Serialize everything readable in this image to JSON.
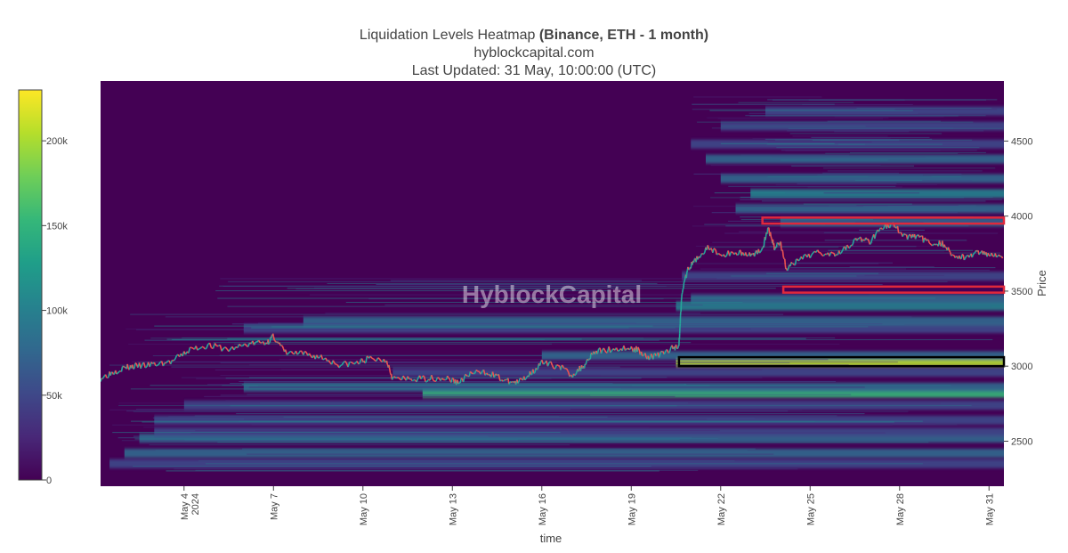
{
  "header": {
    "title_main": "Liquidation Levels Heatmap ",
    "title_bold": "(Binance, ETH - 1 month)",
    "subtitle": "hyblockcapital.com",
    "updated": "Last Updated: 31 May, 10:00:00 (UTC)"
  },
  "watermark": "HyblockCapital",
  "colors": {
    "background": "#440154",
    "price_up": "#26a69a",
    "price_down": "#ef5350",
    "highlight_red": "#e0283c",
    "highlight_black": "#000000",
    "colorscale": [
      "#440154",
      "#482878",
      "#3e4989",
      "#31688e",
      "#26828e",
      "#1f9e89",
      "#35b779",
      "#6ece58",
      "#b5de2b",
      "#fde725"
    ]
  },
  "chart_data": {
    "type": "heatmap",
    "xlabel": "time",
    "ylabel": "Price",
    "y_axis_side": "right",
    "ylim": [
      2200,
      4900
    ],
    "x_start_day": 1.2,
    "x_end_day": 31.5,
    "x_ticks": [
      {
        "day": 4,
        "label": "May 4",
        "sublabel": "2024"
      },
      {
        "day": 7,
        "label": "May 7",
        "sublabel": ""
      },
      {
        "day": 10,
        "label": "May 10",
        "sublabel": ""
      },
      {
        "day": 13,
        "label": "May 13",
        "sublabel": ""
      },
      {
        "day": 16,
        "label": "May 16",
        "sublabel": ""
      },
      {
        "day": 19,
        "label": "May 19",
        "sublabel": ""
      },
      {
        "day": 22,
        "label": "May 22",
        "sublabel": ""
      },
      {
        "day": 25,
        "label": "May 25",
        "sublabel": ""
      },
      {
        "day": 28,
        "label": "May 28",
        "sublabel": ""
      },
      {
        "day": 31,
        "label": "May 31",
        "sublabel": ""
      }
    ],
    "y_ticks": [
      2500,
      3000,
      3500,
      4000,
      4500
    ],
    "colorbar": {
      "min": 0,
      "max": 230000,
      "ticks": [
        {
          "value": 0,
          "label": "0"
        },
        {
          "value": 50000,
          "label": "50k"
        },
        {
          "value": 100000,
          "label": "100k"
        },
        {
          "value": 150000,
          "label": "150k"
        },
        {
          "value": 200000,
          "label": "200k"
        }
      ]
    },
    "price_series": [
      {
        "day": 1.2,
        "price": 2920
      },
      {
        "day": 1.6,
        "price": 2960
      },
      {
        "day": 2.0,
        "price": 2990
      },
      {
        "day": 2.4,
        "price": 3000
      },
      {
        "day": 3.0,
        "price": 3010
      },
      {
        "day": 3.6,
        "price": 3030
      },
      {
        "day": 4.2,
        "price": 3110
      },
      {
        "day": 4.8,
        "price": 3140
      },
      {
        "day": 5.5,
        "price": 3110
      },
      {
        "day": 6.2,
        "price": 3150
      },
      {
        "day": 6.8,
        "price": 3160
      },
      {
        "day": 7.0,
        "price": 3200
      },
      {
        "day": 7.4,
        "price": 3090
      },
      {
        "day": 8.0,
        "price": 3080
      },
      {
        "day": 8.6,
        "price": 3060
      },
      {
        "day": 9.2,
        "price": 3010
      },
      {
        "day": 9.8,
        "price": 3020
      },
      {
        "day": 10.2,
        "price": 3050
      },
      {
        "day": 10.8,
        "price": 3040
      },
      {
        "day": 11.0,
        "price": 2920
      },
      {
        "day": 11.6,
        "price": 2910
      },
      {
        "day": 12.2,
        "price": 2920
      },
      {
        "day": 12.8,
        "price": 2920
      },
      {
        "day": 13.2,
        "price": 2890
      },
      {
        "day": 13.6,
        "price": 2950
      },
      {
        "day": 14.2,
        "price": 2960
      },
      {
        "day": 14.8,
        "price": 2900
      },
      {
        "day": 15.2,
        "price": 2890
      },
      {
        "day": 15.6,
        "price": 2950
      },
      {
        "day": 16.0,
        "price": 3020
      },
      {
        "day": 16.6,
        "price": 3000
      },
      {
        "day": 17.0,
        "price": 2940
      },
      {
        "day": 17.4,
        "price": 3000
      },
      {
        "day": 17.7,
        "price": 3090
      },
      {
        "day": 18.2,
        "price": 3110
      },
      {
        "day": 18.8,
        "price": 3120
      },
      {
        "day": 19.2,
        "price": 3110
      },
      {
        "day": 19.6,
        "price": 3060
      },
      {
        "day": 20.0,
        "price": 3080
      },
      {
        "day": 20.4,
        "price": 3120
      },
      {
        "day": 20.6,
        "price": 3140
      },
      {
        "day": 20.7,
        "price": 3500
      },
      {
        "day": 20.9,
        "price": 3640
      },
      {
        "day": 21.2,
        "price": 3720
      },
      {
        "day": 21.6,
        "price": 3790
      },
      {
        "day": 22.0,
        "price": 3740
      },
      {
        "day": 22.6,
        "price": 3760
      },
      {
        "day": 23.0,
        "price": 3740
      },
      {
        "day": 23.4,
        "price": 3780
      },
      {
        "day": 23.6,
        "price": 3920
      },
      {
        "day": 23.8,
        "price": 3790
      },
      {
        "day": 24.0,
        "price": 3830
      },
      {
        "day": 24.2,
        "price": 3650
      },
      {
        "day": 24.6,
        "price": 3700
      },
      {
        "day": 25.2,
        "price": 3760
      },
      {
        "day": 25.8,
        "price": 3750
      },
      {
        "day": 26.2,
        "price": 3790
      },
      {
        "day": 26.6,
        "price": 3850
      },
      {
        "day": 27.0,
        "price": 3830
      },
      {
        "day": 27.4,
        "price": 3930
      },
      {
        "day": 27.8,
        "price": 3940
      },
      {
        "day": 28.2,
        "price": 3860
      },
      {
        "day": 28.6,
        "price": 3870
      },
      {
        "day": 29.0,
        "price": 3820
      },
      {
        "day": 29.4,
        "price": 3820
      },
      {
        "day": 29.8,
        "price": 3740
      },
      {
        "day": 30.2,
        "price": 3720
      },
      {
        "day": 30.6,
        "price": 3760
      },
      {
        "day": 31.0,
        "price": 3750
      },
      {
        "day": 31.5,
        "price": 3740
      }
    ],
    "liquidation_bands": [
      {
        "price": 2350,
        "start_day": 1.5,
        "value": 60000
      },
      {
        "price": 2420,
        "start_day": 2.0,
        "value": 70000
      },
      {
        "price": 2520,
        "start_day": 2.5,
        "value": 75000
      },
      {
        "price": 2560,
        "start_day": 3.0,
        "value": 60000
      },
      {
        "price": 2640,
        "start_day": 3.0,
        "value": 55000
      },
      {
        "price": 2740,
        "start_day": 4.0,
        "value": 60000
      },
      {
        "price": 2820,
        "start_day": 12.0,
        "value": 145000
      },
      {
        "price": 2860,
        "start_day": 6.0,
        "value": 70000
      },
      {
        "price": 2960,
        "start_day": 11.0,
        "value": 60000
      },
      {
        "price": 3030,
        "start_day": 20.5,
        "value": 210000
      },
      {
        "price": 3070,
        "start_day": 16.0,
        "value": 80000
      },
      {
        "price": 3250,
        "start_day": 6.0,
        "value": 60000
      },
      {
        "price": 3300,
        "start_day": 8.0,
        "value": 65000
      },
      {
        "price": 3400,
        "start_day": 20.5,
        "value": 90000
      },
      {
        "price": 3450,
        "start_day": 21.0,
        "value": 70000
      },
      {
        "price": 3600,
        "start_day": 20.7,
        "value": 55000
      },
      {
        "price": 3960,
        "start_day": 24.0,
        "value": 85000
      },
      {
        "price": 4050,
        "start_day": 22.5,
        "value": 70000
      },
      {
        "price": 4150,
        "start_day": 23.0,
        "value": 95000
      },
      {
        "price": 4250,
        "start_day": 22.0,
        "value": 65000
      },
      {
        "price": 4380,
        "start_day": 21.5,
        "value": 85000
      },
      {
        "price": 4480,
        "start_day": 21.0,
        "value": 60000
      },
      {
        "price": 4600,
        "start_day": 22.0,
        "value": 50000
      },
      {
        "price": 4700,
        "start_day": 23.5,
        "value": 45000
      }
    ],
    "highlight_boxes": [
      {
        "color": "red",
        "start_day": 23.4,
        "end_day": 31.5,
        "price_low": 3950,
        "price_high": 3990
      },
      {
        "color": "red",
        "start_day": 24.1,
        "end_day": 31.5,
        "price_low": 3490,
        "price_high": 3530
      },
      {
        "color": "black",
        "start_day": 20.6,
        "end_day": 31.5,
        "price_low": 3000,
        "price_high": 3060
      }
    ]
  }
}
